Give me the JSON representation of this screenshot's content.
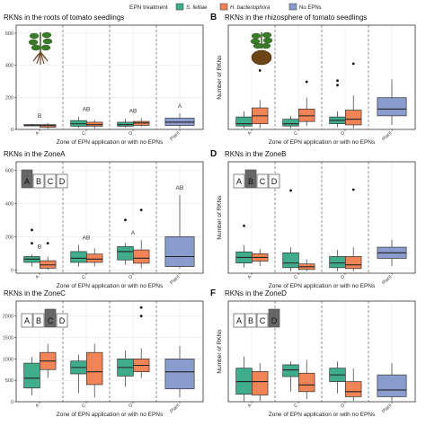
{
  "legend": {
    "title": "EPN treatment",
    "items": [
      {
        "label": "S. feltiae",
        "color": "#3fad8c"
      },
      {
        "label": "H. bacteriophora",
        "color": "#f08457"
      },
      {
        "label": "No EPNs",
        "color": "#8a9cce"
      }
    ]
  },
  "colors": {
    "panel_bg": "#ffffff",
    "grid": "#e8e8e8",
    "border": "#333333",
    "zone_dark": "#666666"
  },
  "zone_letters": [
    "A",
    "B",
    "C",
    "D"
  ],
  "chart_data": [
    {
      "letter": "",
      "type": "box",
      "title": "RKNs in the roots of tomato seedlings",
      "xlabel": "Zone of EPN application or with no EPNs",
      "ylabel": "",
      "categories": [
        "A",
        "C",
        "D",
        "Plant"
      ],
      "ylim": [
        0,
        650
      ],
      "yticks": [
        0,
        200,
        400,
        600
      ],
      "icon": "seedling-roots",
      "highlight": null,
      "annotations": [
        "B",
        "AB",
        "AB",
        "A"
      ],
      "groups": [
        {
          "series": [
            {
              "color": "#3fad8c",
              "min": 20,
              "q1": 22,
              "med": 27,
              "q3": 30,
              "max": 35,
              "out": []
            },
            {
              "color": "#f08457",
              "min": 5,
              "q1": 14,
              "med": 24,
              "q3": 30,
              "max": 38,
              "out": []
            }
          ]
        },
        {
          "series": [
            {
              "color": "#3fad8c",
              "min": 10,
              "q1": 20,
              "med": 35,
              "q3": 55,
              "max": 80,
              "out": []
            },
            {
              "color": "#f08457",
              "min": 5,
              "q1": 20,
              "med": 30,
              "q3": 45,
              "max": 60,
              "out": []
            }
          ]
        },
        {
          "series": [
            {
              "color": "#3fad8c",
              "min": 10,
              "q1": 20,
              "med": 30,
              "q3": 45,
              "max": 65,
              "out": []
            },
            {
              "color": "#f08457",
              "min": 15,
              "q1": 25,
              "med": 40,
              "q3": 50,
              "max": 70,
              "out": []
            }
          ]
        },
        {
          "series": [
            {
              "color": "#8a9cce",
              "min": 10,
              "q1": 25,
              "med": 45,
              "q3": 70,
              "max": 100,
              "out": []
            }
          ]
        }
      ]
    },
    {
      "letter": "B",
      "type": "box",
      "title": "RKNs in the rhizosphere of tomato seedlings",
      "xlabel": "Zone of EPN application or with no EPNs",
      "ylabel": "Number of RKNs",
      "categories": [
        "A",
        "C",
        "D",
        "Plant"
      ],
      "ylim": [
        0,
        460
      ],
      "yticks": [],
      "icon": "seedling-soil",
      "highlight": null,
      "annotations": [],
      "groups": [
        {
          "series": [
            {
              "color": "#3fad8c",
              "min": 5,
              "q1": 15,
              "med": 25,
              "q3": 55,
              "max": 80,
              "out": []
            },
            {
              "color": "#f08457",
              "min": 5,
              "q1": 25,
              "med": 60,
              "q3": 95,
              "max": 130,
              "out": [
                260
              ]
            }
          ]
        },
        {
          "series": [
            {
              "color": "#3fad8c",
              "min": 5,
              "q1": 15,
              "med": 25,
              "q3": 45,
              "max": 60,
              "out": []
            },
            {
              "color": "#f08457",
              "min": 15,
              "q1": 35,
              "med": 60,
              "q3": 90,
              "max": 140,
              "out": [
                210
              ]
            }
          ]
        },
        {
          "series": [
            {
              "color": "#3fad8c",
              "min": 10,
              "q1": 25,
              "med": 40,
              "q3": 55,
              "max": 80,
              "out": [
                195,
                215
              ]
            },
            {
              "color": "#f08457",
              "min": 5,
              "q1": 20,
              "med": 45,
              "q3": 85,
              "max": 150,
              "out": [
                290
              ]
            }
          ]
        },
        {
          "series": [
            {
              "color": "#8a9cce",
              "min": 20,
              "q1": 60,
              "med": 90,
              "q3": 140,
              "max": 220,
              "out": []
            }
          ]
        }
      ]
    },
    {
      "letter": "",
      "type": "box",
      "title": "RKNs in the ZoneA",
      "xlabel": "Zone of EPN application or with no EPNs",
      "ylabel": "",
      "categories": [
        "A",
        "C",
        "D",
        "Plant"
      ],
      "ylim": [
        -20,
        650
      ],
      "yticks": [
        0,
        200,
        400,
        600
      ],
      "icon": "",
      "highlight": 0,
      "annotations": [
        "B",
        "AB",
        "A",
        "AB"
      ],
      "groups": [
        {
          "series": [
            {
              "color": "#3fad8c",
              "min": 20,
              "q1": 45,
              "med": 65,
              "q3": 80,
              "max": 95,
              "out": [
                160,
                240
              ]
            },
            {
              "color": "#f08457",
              "min": 0,
              "q1": 10,
              "med": 30,
              "q3": 55,
              "max": 80,
              "out": [
                160
              ]
            }
          ]
        },
        {
          "series": [
            {
              "color": "#3fad8c",
              "min": 20,
              "q1": 45,
              "med": 70,
              "q3": 110,
              "max": 150,
              "out": []
            },
            {
              "color": "#f08457",
              "min": 20,
              "q1": 45,
              "med": 65,
              "q3": 95,
              "max": 130,
              "out": []
            }
          ]
        },
        {
          "series": [
            {
              "color": "#3fad8c",
              "min": 30,
              "q1": 60,
              "med": 110,
              "q3": 140,
              "max": 160,
              "out": [
                300
              ]
            },
            {
              "color": "#f08457",
              "min": 10,
              "q1": 40,
              "med": 70,
              "q3": 120,
              "max": 180,
              "out": [
                360
              ]
            }
          ]
        },
        {
          "series": [
            {
              "color": "#8a9cce",
              "min": 10,
              "q1": 20,
              "med": 80,
              "q3": 200,
              "max": 450,
              "out": []
            }
          ]
        }
      ]
    },
    {
      "letter": "D",
      "type": "box",
      "title": "RKNs in the ZoneB",
      "xlabel": "Zone of EPN application or with no EPNs",
      "ylabel": "Number of RKNs",
      "categories": [
        "A",
        "C",
        "D",
        "Plant"
      ],
      "ylim": [
        0,
        600
      ],
      "yticks": [],
      "icon": "",
      "highlight": 1,
      "annotations": [],
      "groups": [
        {
          "series": [
            {
              "color": "#3fad8c",
              "min": 30,
              "q1": 55,
              "med": 85,
              "q3": 115,
              "max": 150,
              "out": [
                255
              ]
            },
            {
              "color": "#f08457",
              "min": 40,
              "q1": 65,
              "med": 85,
              "q3": 105,
              "max": 130,
              "out": []
            }
          ]
        },
        {
          "series": [
            {
              "color": "#3fad8c",
              "min": 10,
              "q1": 30,
              "med": 55,
              "q3": 110,
              "max": 140,
              "out": [
                445
              ]
            },
            {
              "color": "#f08457",
              "min": 10,
              "q1": 20,
              "med": 35,
              "q3": 50,
              "max": 75,
              "out": []
            }
          ]
        },
        {
          "series": [
            {
              "color": "#3fad8c",
              "min": 10,
              "q1": 30,
              "med": 55,
              "q3": 90,
              "max": 125,
              "out": []
            },
            {
              "color": "#f08457",
              "min": 10,
              "q1": 25,
              "med": 45,
              "q3": 90,
              "max": 140,
              "out": [
                450
              ]
            }
          ]
        },
        {
          "series": [
            {
              "color": "#8a9cce",
              "min": 40,
              "q1": 80,
              "med": 110,
              "q3": 140,
              "max": 180,
              "out": []
            }
          ]
        }
      ]
    },
    {
      "letter": "",
      "type": "box",
      "title": "RKNs in the ZoneC",
      "xlabel": "Zone of EPN application or with no EPNs",
      "ylabel": "",
      "categories": [
        "A",
        "C",
        "D",
        "Plant"
      ],
      "ylim": [
        0,
        2350
      ],
      "yticks": [
        0,
        500,
        1000,
        1500,
        2000
      ],
      "icon": "",
      "highlight": 2,
      "annotations": [],
      "groups": [
        {
          "series": [
            {
              "color": "#3fad8c",
              "min": 150,
              "q1": 320,
              "med": 550,
              "q3": 900,
              "max": 1050,
              "out": []
            },
            {
              "color": "#f08457",
              "min": 550,
              "q1": 750,
              "med": 950,
              "q3": 1150,
              "max": 1350,
              "out": []
            }
          ]
        },
        {
          "series": [
            {
              "color": "#3fad8c",
              "min": 200,
              "q1": 650,
              "med": 800,
              "q3": 950,
              "max": 1100,
              "out": []
            },
            {
              "color": "#f08457",
              "min": 100,
              "q1": 400,
              "med": 700,
              "q3": 1150,
              "max": 1350,
              "out": []
            }
          ]
        },
        {
          "series": [
            {
              "color": "#3fad8c",
              "min": 350,
              "q1": 600,
              "med": 800,
              "q3": 1000,
              "max": 1200,
              "out": []
            },
            {
              "color": "#f08457",
              "min": 550,
              "q1": 700,
              "med": 850,
              "q3": 1000,
              "max": 1250,
              "out": [
                2000,
                2200
              ]
            }
          ]
        },
        {
          "series": [
            {
              "color": "#8a9cce",
              "min": 100,
              "q1": 300,
              "med": 700,
              "q3": 1000,
              "max": 1300,
              "out": []
            }
          ]
        }
      ]
    },
    {
      "letter": "F",
      "type": "box",
      "title": "RKNs in the ZoneD",
      "xlabel": "Zone of EPN application or with no EPNs",
      "ylabel": "Number of RKNs",
      "categories": [
        "A",
        "C",
        "D",
        "Plant"
      ],
      "ylim": [
        0,
        600
      ],
      "yticks": [],
      "icon": "",
      "highlight": 3,
      "annotations": [],
      "groups": [
        {
          "series": [
            {
              "color": "#3fad8c",
              "min": 0,
              "q1": 45,
              "med": 120,
              "q3": 200,
              "max": 270,
              "out": []
            },
            {
              "color": "#f08457",
              "min": 5,
              "q1": 40,
              "med": 120,
              "q3": 180,
              "max": 230,
              "out": []
            }
          ]
        },
        {
          "series": [
            {
              "color": "#3fad8c",
              "min": 60,
              "q1": 150,
              "med": 190,
              "q3": 220,
              "max": 240,
              "out": []
            },
            {
              "color": "#f08457",
              "min": 15,
              "q1": 60,
              "med": 100,
              "q3": 170,
              "max": 250,
              "out": []
            }
          ]
        },
        {
          "series": [
            {
              "color": "#3fad8c",
              "min": 50,
              "q1": 120,
              "med": 160,
              "q3": 200,
              "max": 240,
              "out": []
            },
            {
              "color": "#f08457",
              "min": 5,
              "q1": 30,
              "med": 60,
              "q3": 120,
              "max": 200,
              "out": []
            }
          ]
        },
        {
          "series": [
            {
              "color": "#8a9cce",
              "min": 5,
              "q1": 30,
              "med": 70,
              "q3": 160,
              "max": 230,
              "out": []
            }
          ]
        }
      ]
    }
  ]
}
